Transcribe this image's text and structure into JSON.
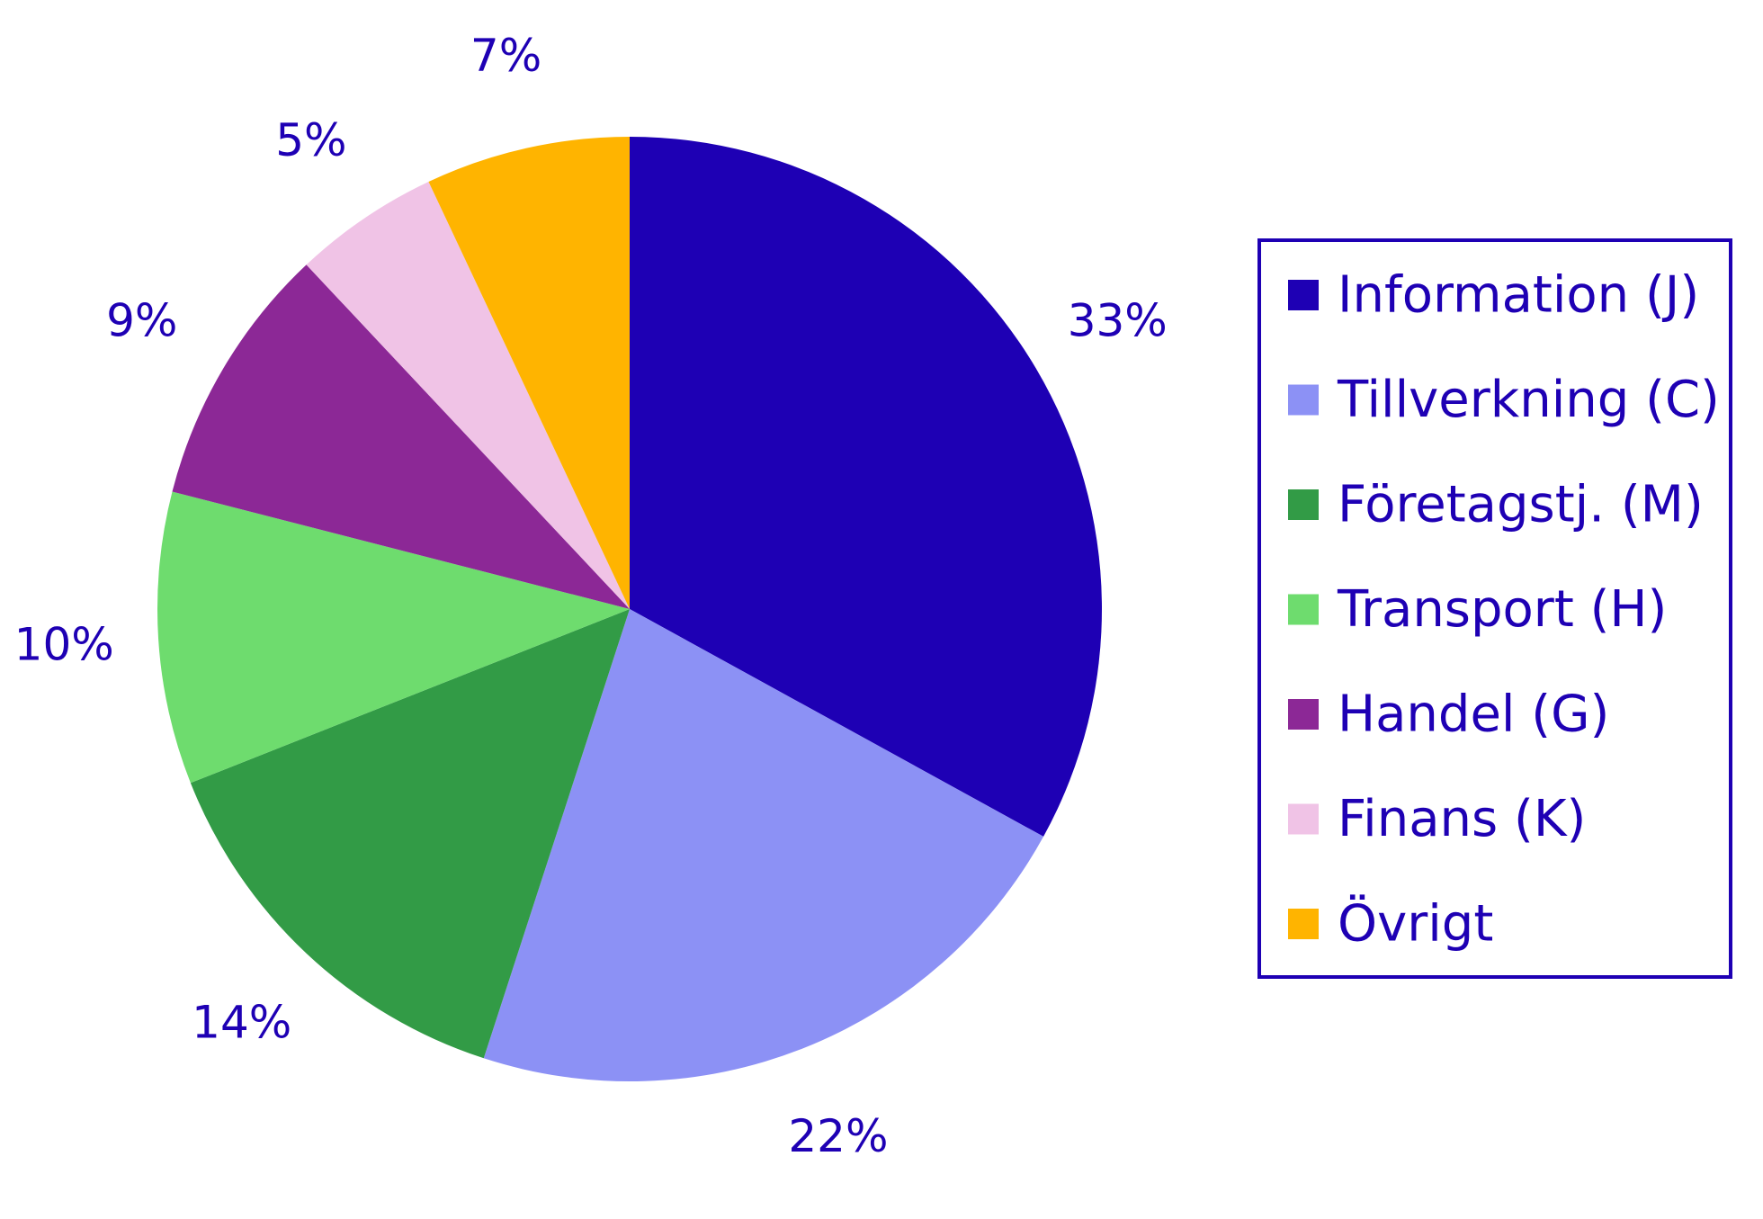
{
  "chart_data": {
    "type": "pie",
    "categories": [
      "Information (J)",
      "Tillverkning (C)",
      "Företagstj. (M)",
      "Transport (H)",
      "Handel (G)",
      "Finans (K)",
      "Övrigt"
    ],
    "values": [
      33,
      22,
      14,
      10,
      9,
      5,
      7
    ],
    "labels": [
      "33%",
      "22%",
      "14%",
      "10%",
      "9%",
      "5%",
      "7%"
    ],
    "colors": [
      "#1e00b4",
      "#8c91f5",
      "#329b46",
      "#6edc6e",
      "#8c2896",
      "#f0c3e6",
      "#ffb400"
    ],
    "label_color": "#1e00b4",
    "legend_placement": "right",
    "start_angle": "top",
    "direction": "clockwise"
  }
}
